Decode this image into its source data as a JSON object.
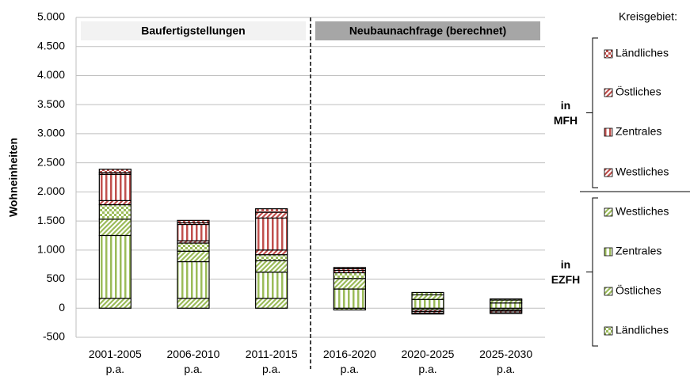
{
  "chart_data": {
    "type": "bar",
    "stacked": true,
    "y_label": "Wohneinheiten",
    "categories": [
      "2001-2005\np.a.",
      "2006-2010\np.a.",
      "2011-2015\np.a.",
      "2016-2020\np.a.",
      "2020-2025\np.a.",
      "2025-2030\np.a."
    ],
    "sections": [
      "Baufertigstellungen",
      "Neubaunachfrage (berechnet)"
    ],
    "legend_title": "Kreisgebiet:",
    "legend_groups": [
      "in\nEZFH",
      "in\nMFH"
    ],
    "series": [
      {
        "name": "Westliches",
        "color": "#9bbb59",
        "values": [
          170,
          170,
          170,
          -30,
          -30,
          -30
        ]
      },
      {
        "name": "Zentrales",
        "color": "#9bbb59",
        "values": [
          1080,
          630,
          450,
          330,
          150,
          90
        ]
      },
      {
        "name": "Östliches",
        "color": "#9bbb59",
        "values": [
          280,
          180,
          200,
          180,
          80,
          50
        ]
      },
      {
        "name": "Ländliches",
        "color": "#9bbb59",
        "values": [
          250,
          140,
          100,
          100,
          40,
          20
        ]
      },
      {
        "name": "Westliches",
        "color": "#c0504d",
        "values": [
          70,
          40,
          80,
          0,
          -30,
          -20
        ]
      },
      {
        "name": "Zentrales",
        "color": "#c0504d",
        "values": [
          450,
          280,
          550,
          40,
          -30,
          -30
        ]
      },
      {
        "name": "Östliches",
        "color": "#c0504d",
        "values": [
          30,
          30,
          100,
          30,
          -10,
          -10
        ]
      },
      {
        "name": "Ländliches",
        "color": "#c0504d",
        "values": [
          60,
          40,
          60,
          20,
          0,
          0
        ]
      }
    ],
    "ylim": [
      -500,
      5000
    ],
    "yticks": [
      -500,
      0,
      500,
      {
        "value": 1000,
        "label": "1.000"
      },
      {
        "value": 1500,
        "label": "1.500"
      },
      {
        "value": 2000,
        "label": "2.000"
      },
      {
        "value": 2500,
        "label": "2.500"
      },
      {
        "value": 3000,
        "label": "3.000"
      },
      {
        "value": 3500,
        "label": "3.500"
      },
      {
        "value": 4000,
        "label": "4.000"
      },
      {
        "value": 4500,
        "label": "4.500"
      },
      {
        "value": 5000,
        "label": "5.000"
      }
    ],
    "grid": true
  }
}
